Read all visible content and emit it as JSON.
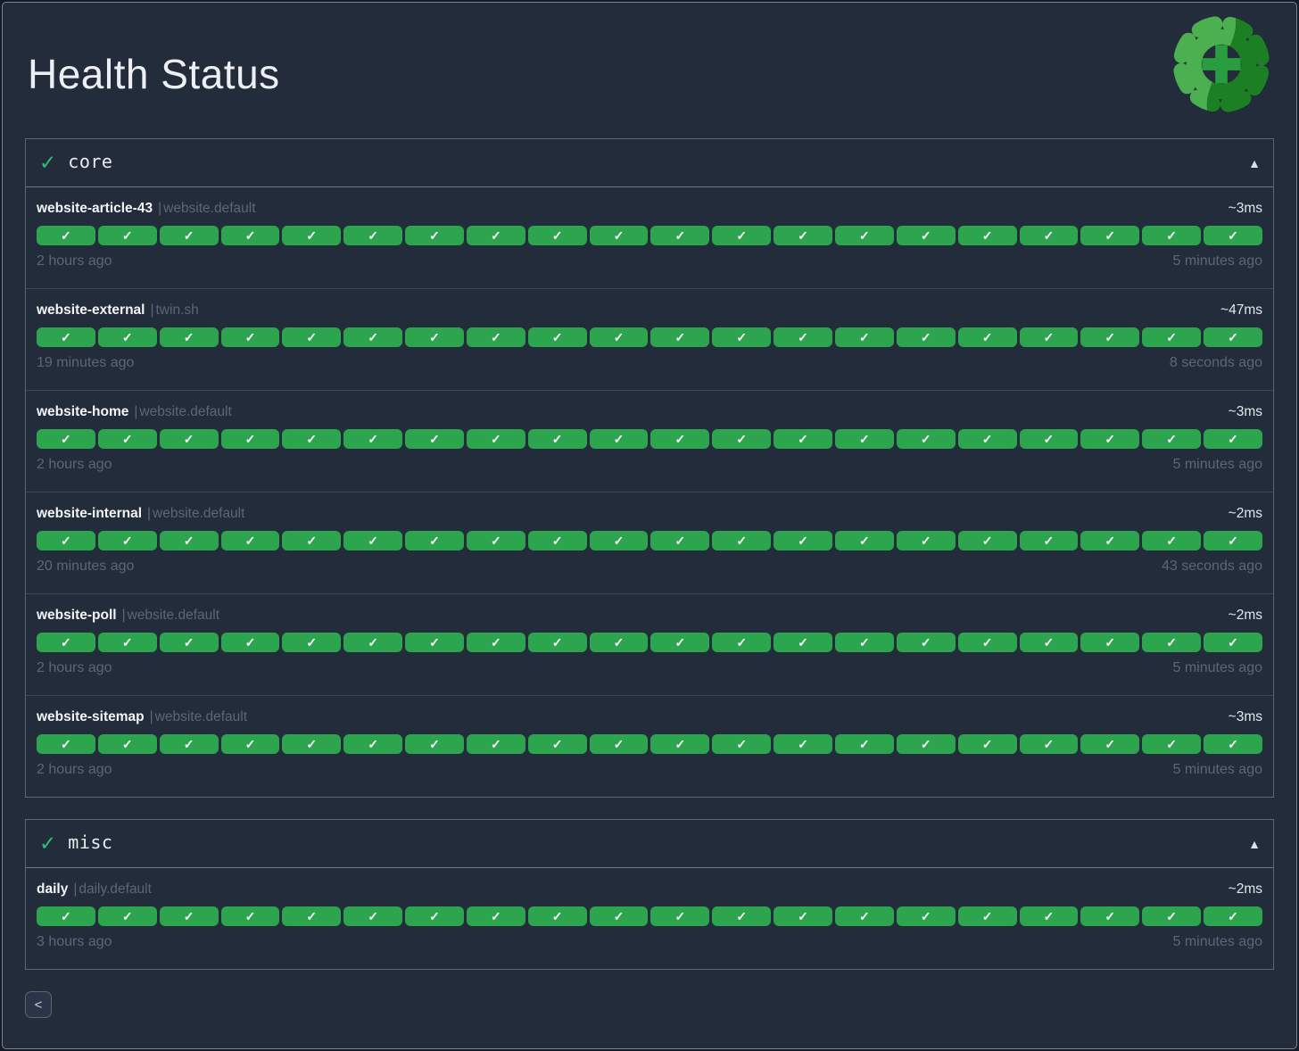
{
  "page": {
    "title": "Health Status"
  },
  "icons": {
    "section_check": "✓",
    "pill_check": "✓",
    "collapse": "▲",
    "prev": "<"
  },
  "colors": {
    "success_green": "#2da44e",
    "header_check_green": "#2fbf71",
    "logo_light_green": "#4cb050",
    "logo_dark_green": "#1d7f24",
    "logo_plus_green": "#2a9d3f",
    "background": "#232c3b",
    "muted_text": "#5c6678",
    "bright_text": "#f3f5f8"
  },
  "sections": [
    {
      "label": "core",
      "services": [
        {
          "name": "website-article-43",
          "separator": "|",
          "tag": "website.default",
          "latency": "~3ms",
          "oldest": "2 hours ago",
          "newest": "5 minutes ago",
          "checks": 20
        },
        {
          "name": "website-external",
          "separator": "|",
          "tag": "twin.sh",
          "latency": "~47ms",
          "oldest": "19 minutes ago",
          "newest": "8 seconds ago",
          "checks": 20
        },
        {
          "name": "website-home",
          "separator": "|",
          "tag": "website.default",
          "latency": "~3ms",
          "oldest": "2 hours ago",
          "newest": "5 minutes ago",
          "checks": 20
        },
        {
          "name": "website-internal",
          "separator": "|",
          "tag": "website.default",
          "latency": "~2ms",
          "oldest": "20 minutes ago",
          "newest": "43 seconds ago",
          "checks": 20
        },
        {
          "name": "website-poll",
          "separator": "|",
          "tag": "website.default",
          "latency": "~2ms",
          "oldest": "2 hours ago",
          "newest": "5 minutes ago",
          "checks": 20
        },
        {
          "name": "website-sitemap",
          "separator": "|",
          "tag": "website.default",
          "latency": "~3ms",
          "oldest": "2 hours ago",
          "newest": "5 minutes ago",
          "checks": 20
        }
      ]
    },
    {
      "label": "misc",
      "services": [
        {
          "name": "daily",
          "separator": "|",
          "tag": "daily.default",
          "latency": "~2ms",
          "oldest": "3 hours ago",
          "newest": "5 minutes ago",
          "checks": 20
        }
      ]
    }
  ],
  "pagination": {
    "prev": "<"
  }
}
